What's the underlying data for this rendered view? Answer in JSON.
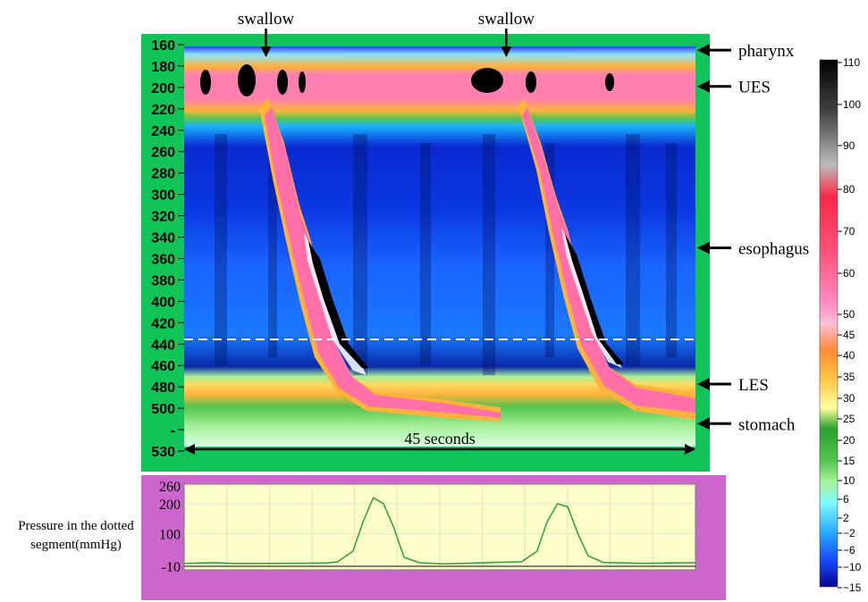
{
  "chart_data": [
    {
      "type": "heatmap",
      "title": "",
      "xlabel": "45 seconds",
      "ylabel": "",
      "y_ticks": [
        160,
        180,
        200,
        220,
        240,
        260,
        280,
        300,
        320,
        340,
        360,
        380,
        400,
        420,
        440,
        460,
        480,
        500,
        "-",
        530
      ],
      "top_annotations": [
        {
          "label": "swallow",
          "x_fraction": 0.16
        },
        {
          "label": "swallow",
          "x_fraction": 0.63
        }
      ],
      "right_annotations": [
        {
          "label": "pharynx",
          "y": 165
        },
        {
          "label": "UES",
          "y": 198
        },
        {
          "label": "esophagus",
          "y": 345
        },
        {
          "label": "LES",
          "y": 469
        },
        {
          "label": "stomach",
          "y": 505
        }
      ],
      "colorbar": {
        "ticks": [
          110,
          100,
          90,
          80,
          70,
          60,
          50,
          45,
          40,
          35,
          30,
          25,
          20,
          15,
          10,
          6,
          2,
          -2,
          -6,
          -10,
          -15
        ],
        "colors": {
          "110": "#000000",
          "100": "#3c3c3c",
          "90": "#9a9a9a",
          "80": "#ededed",
          "70": "#ff3050",
          "60": "#ff5078",
          "50": "#ff70a8",
          "45": "#ff88bb",
          "40": "#ff9fd0",
          "35": "#ffc0d8",
          "30": "#ff8a3a",
          "25": "#ffb23c",
          "20": "#ffd860",
          "15": "#ffff9c",
          "10": "#2aa030",
          "6": "#52c450",
          "2": "#a8f09a",
          "-2": "#7ffcff",
          "-6": "#26c4ff",
          "-10": "#1a64ff",
          "-15": "#06068c"
        }
      },
      "dotted_segment_y": 429
    },
    {
      "type": "line",
      "title": "",
      "ylabel": "Pressure in the dotted segment(mmHg)",
      "y_ticks": [
        260,
        200,
        100,
        -10
      ],
      "ylim": [
        -10,
        260
      ],
      "series": [
        {
          "x": [
            0,
            0.06,
            0.1,
            0.2,
            0.28,
            0.3,
            0.33,
            0.35,
            0.37,
            0.39,
            0.41,
            0.43,
            0.46,
            0.5,
            0.55,
            0.6,
            0.66,
            0.69,
            0.71,
            0.73,
            0.75,
            0.77,
            0.79,
            0.82,
            0.86,
            0.9,
            0.95,
            1.0
          ],
          "y": [
            0,
            2,
            -1,
            0,
            1,
            5,
            40,
            140,
            220,
            200,
            120,
            20,
            2,
            -2,
            0,
            3,
            5,
            40,
            140,
            200,
            190,
            100,
            25,
            3,
            1,
            0,
            1,
            2
          ]
        }
      ],
      "colors": {
        "line": "#2aa030",
        "plot_bg": "#ffffcc",
        "frame_bg": "#cc66cc",
        "grid": "#d8e6c8"
      }
    }
  ],
  "colors": {
    "heatmap_frame": "#12c35a",
    "arrows": "#000000"
  }
}
